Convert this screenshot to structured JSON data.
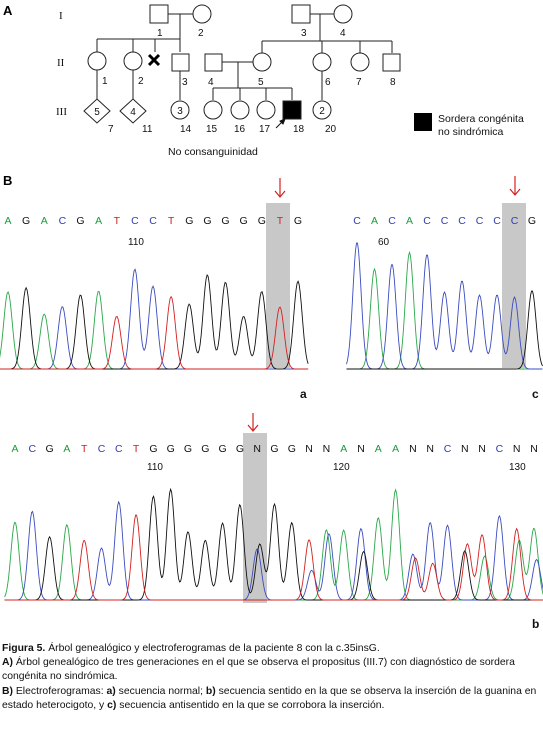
{
  "panel_a_label": "A",
  "panel_b_label": "B",
  "pedigree": {
    "generations": [
      "I",
      "II",
      "III"
    ],
    "ids": [
      "1",
      "2",
      "3",
      "4",
      "1",
      "2",
      "3",
      "4",
      "5",
      "6",
      "7",
      "8",
      "7",
      "11",
      "14",
      "15",
      "16",
      "17",
      "18",
      "20"
    ],
    "legend": "Sordera congénita no sindrómica",
    "legend_line1": "Sordera congénita",
    "legend_line2": "no sindrómica",
    "note": "No consanguinidad"
  },
  "electropherograms": {
    "a": {
      "label": "a",
      "bases": [
        "A",
        "G",
        "A",
        "C",
        "G",
        "A",
        "T",
        "C",
        "C",
        "T",
        "G",
        "G",
        "G",
        "G",
        "G",
        "T",
        "G"
      ],
      "position_label": "110"
    },
    "c": {
      "label": "c",
      "bases": [
        "C",
        "A",
        "C",
        "A",
        "C",
        "C",
        "C",
        "C",
        "C",
        "C",
        "G"
      ],
      "position_label": "60"
    },
    "b": {
      "label": "b",
      "bases": [
        "A",
        "C",
        "G",
        "A",
        "T",
        "C",
        "C",
        "T",
        "G",
        "G",
        "G",
        "G",
        "G",
        "G",
        "N",
        "G",
        "G",
        "N",
        "N",
        "A",
        "N",
        "A",
        "A",
        "N",
        "N",
        "C",
        "N",
        "N",
        "C",
        "N",
        "N"
      ],
      "position_labels": [
        "110",
        "120",
        "130"
      ]
    },
    "base_colors": {
      "A": "#1a9a3a",
      "C": "#2f3fae",
      "G": "#111111",
      "T": "#d42020",
      "N": "#111111"
    }
  },
  "caption": {
    "title_bold": "Figura 5.",
    "title_text": " Árbol genealógico y electroferogramas de la paciente 8 con la c.35insG.",
    "a_bold": "A)",
    "a_text": " Árbol genealógico de tres generaciones en el que se observa el propositus (III.7) con diagnóstico de sordera congénita no sindrómica.",
    "b_bold": "B)",
    "b_text1": " Electroferogramas: ",
    "b_a_bold": "a)",
    "b_a_text": " secuencia normal; ",
    "b_b_bold": "b)",
    "b_b_text": " secuencia sentido en la que se observa la inserción de la guanina en estado heterocigoto, y ",
    "b_c_bold": "c)",
    "b_c_text": " secuencia antisentido en la que se corrobora la inserción."
  }
}
